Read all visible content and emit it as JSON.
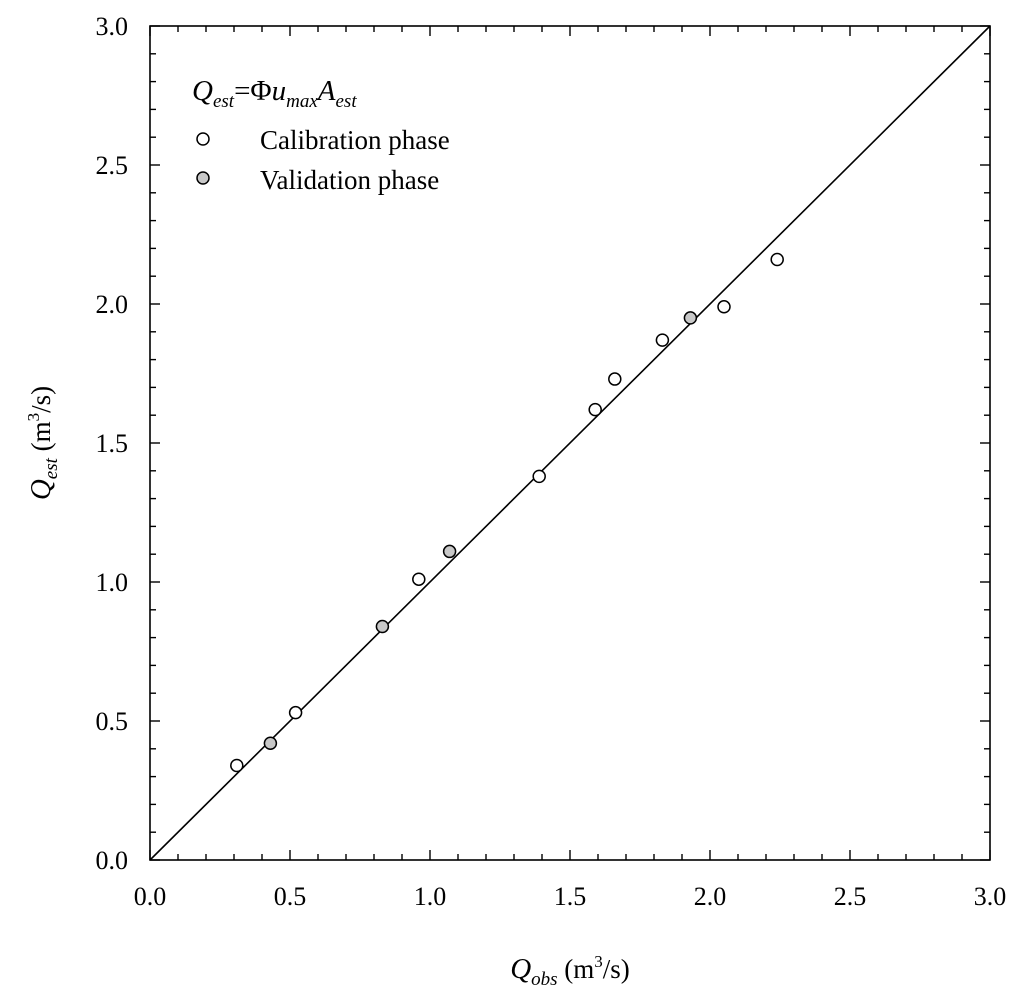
{
  "chart_data": {
    "type": "scatter",
    "title": "",
    "xlabel": {
      "base": "Q",
      "sub": "obs",
      "unit_pre": " (m",
      "unit_sup": "3",
      "unit_post": "/s)"
    },
    "ylabel": {
      "base": "Q",
      "sub": "est",
      "unit_pre": " (m",
      "unit_sup": "3",
      "unit_post": "/s)"
    },
    "xlim": [
      0,
      3
    ],
    "ylim": [
      0,
      3
    ],
    "major_step": 0.5,
    "minor_step": 0.1,
    "x_ticks": [
      "0.0",
      "0.5",
      "1.0",
      "1.5",
      "2.0",
      "2.5",
      "3.0"
    ],
    "y_ticks": [
      "0.0",
      "0.5",
      "1.0",
      "1.5",
      "2.0",
      "2.5",
      "3.0"
    ],
    "grid": false,
    "legend_position": "top-left",
    "reference_line": {
      "from": [
        0,
        0
      ],
      "to": [
        3,
        3
      ],
      "color": "#000000"
    },
    "equation": {
      "q": "Q",
      "q_sub": "est",
      "eq": "=Φ",
      "u": "u",
      "u_sub": "max",
      "a": "A",
      "a_sub": "est"
    },
    "series": [
      {
        "name": "Calibration phase",
        "fill": "#ffffff",
        "stroke": "#000000",
        "points": [
          [
            0.31,
            0.34
          ],
          [
            0.52,
            0.53
          ],
          [
            0.96,
            1.01
          ],
          [
            1.39,
            1.38
          ],
          [
            1.59,
            1.62
          ],
          [
            1.66,
            1.73
          ],
          [
            1.83,
            1.87
          ],
          [
            2.05,
            1.99
          ],
          [
            2.24,
            2.16
          ]
        ]
      },
      {
        "name": "Validation phase",
        "fill": "#c8c8c8",
        "stroke": "#000000",
        "points": [
          [
            0.43,
            0.42
          ],
          [
            0.83,
            0.84
          ],
          [
            1.07,
            1.11
          ],
          [
            1.93,
            1.95
          ]
        ]
      }
    ]
  }
}
